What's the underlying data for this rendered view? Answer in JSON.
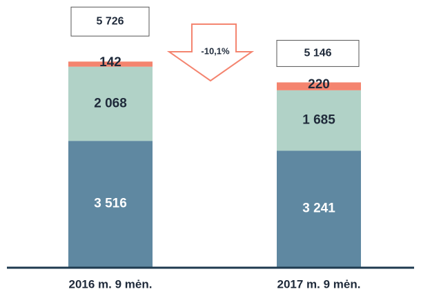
{
  "chart_data": {
    "type": "stacked_bar",
    "categories": [
      "2016 m. 9 mėn.",
      "2017 m. 9 mėn."
    ],
    "series": [
      {
        "color": "#5f88a1",
        "values": [
          3516,
          3241
        ],
        "value_labels": [
          "3 516",
          "3 241"
        ],
        "label_color": "#ffffff"
      },
      {
        "color": "#b1d2c7",
        "values": [
          2068,
          1685
        ],
        "value_labels": [
          "2 068",
          "1 685"
        ],
        "label_color": "#1f2a3a"
      },
      {
        "color": "#f4846f",
        "values": [
          142,
          220
        ],
        "value_labels": [
          "142",
          "220"
        ],
        "label_color": "#1f2a3a"
      }
    ],
    "totals": [
      5726,
      5146
    ],
    "total_labels": [
      "5 726",
      "5 146"
    ],
    "annotation": "-10,1%"
  }
}
